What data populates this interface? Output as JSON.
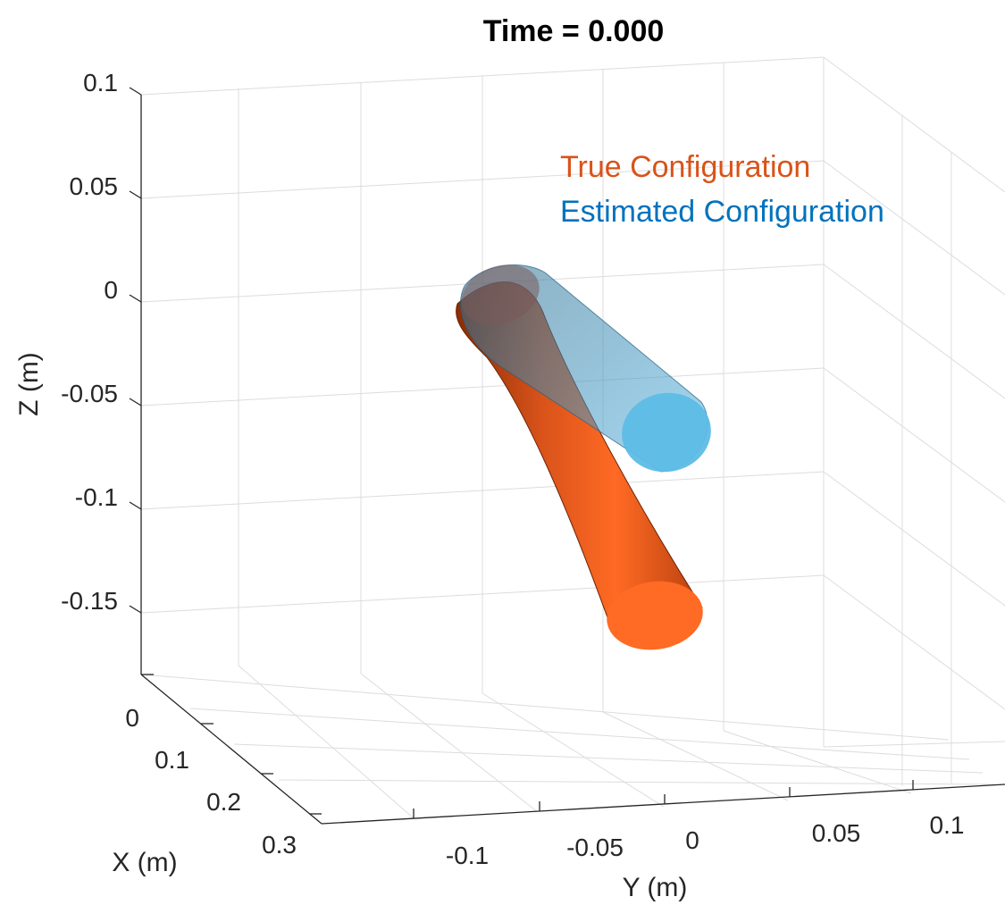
{
  "chart_data": {
    "type": "3d-surface",
    "title": "Time = 0.000",
    "xlabel": "X (m)",
    "ylabel": "Y (m)",
    "zlabel": "Z (m)",
    "x_ticks": [
      "0",
      "0.1",
      "0.2",
      "0.3"
    ],
    "y_ticks": [
      "-0.1",
      "-0.05",
      "0",
      "0.05",
      "0.1"
    ],
    "z_ticks": [
      "0.1",
      "0.05",
      "0",
      "-0.05",
      "-0.1",
      "-0.15"
    ],
    "legend_placement": "top-right",
    "series": [
      {
        "name": "True Configuration",
        "color": "#d95319",
        "fill": "#ff6a24",
        "opacity": 1.0
      },
      {
        "name": "Estimated Configuration",
        "color": "#0072bd",
        "fill": "#4db8e8",
        "opacity": 0.6
      }
    ],
    "grid": true
  }
}
